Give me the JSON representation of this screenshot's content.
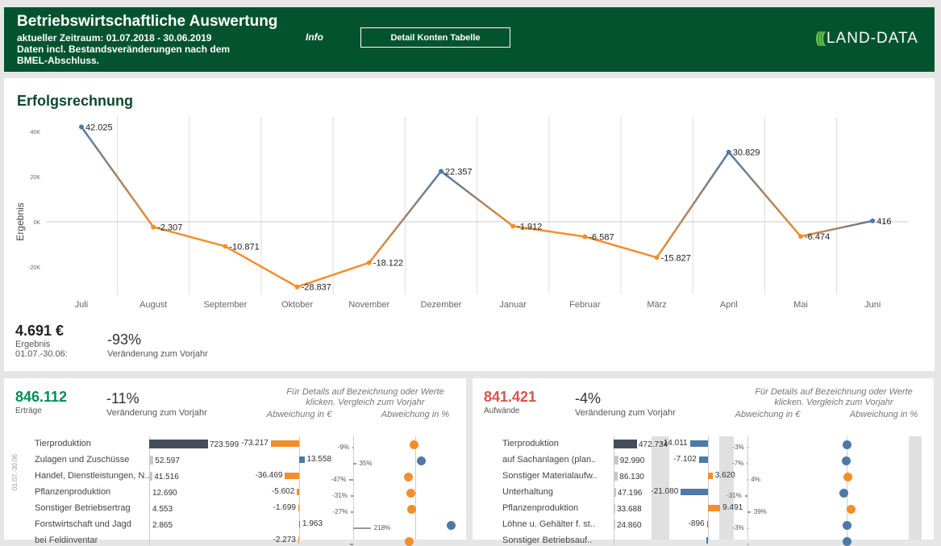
{
  "header": {
    "title": "Betriebswirtschaftliche Auswertung",
    "period": "aktueller Zeitraum:  01.07.2018 - 30.06.2019",
    "note1": "Daten incl. Bestandsveränderungen nach dem",
    "note2": "BMEL-Abschluss.",
    "info": "Info",
    "detail_button": "Detail Konten Tabelle",
    "logo": "LAND-DATA",
    "logo_arc": "(((",
    "color": "#03532f"
  },
  "top": {
    "title": "Erfolgsrechnung",
    "result_value": "4.691 €",
    "result_label": "Ergebnis",
    "result_period": "01.07.-30.06:",
    "change": "-93%",
    "change_label": "Veränderung zum Vorjahr"
  },
  "chart_data": {
    "type": "line",
    "ylabel": "Ergebnis",
    "yticks": [
      "40K",
      "20K",
      "0K",
      "-20K"
    ],
    "ytick_values": [
      40000,
      20000,
      0,
      -20000
    ],
    "ylim": [
      -30000,
      45000
    ],
    "categories": [
      "Juli",
      "August",
      "September",
      "Oktober",
      "November",
      "Dezember",
      "Januar",
      "Februar",
      "März",
      "April",
      "Mai",
      "Juni"
    ],
    "values": [
      42025,
      -2307,
      -10871,
      -28837,
      -18122,
      22357,
      -1912,
      -6587,
      -15827,
      30829,
      -6474,
      416
    ],
    "labels": [
      "42.025",
      "-2.307",
      "-10.871",
      "-28.837",
      "-18.122",
      "22.357",
      "-1.912",
      "-6.587",
      "-15.827",
      "30.829",
      "-6.474",
      "416"
    ],
    "colors": {
      "positive": "#4e79a7",
      "negative": "#f28e2b"
    },
    "grid": true
  },
  "left": {
    "total": "846.112",
    "total_label": "Erträge",
    "total_color": "#0a8a5a",
    "change": "-11%",
    "change_label": "Veränderung zum Vorjahr",
    "hint1": "Für Details auf Bezeichnung oder Werte",
    "hint2": "klicken. Vergleich zum Vorjahr",
    "col_eur": "Abweichung in €",
    "col_pct": "Abweichung in %",
    "axis_label": "01.07.-30.06",
    "rows": [
      {
        "label": "Tierproduktion",
        "value": 723599,
        "value_text": "723.599",
        "diff": -73217,
        "diff_text": "-73.217",
        "pct": -9,
        "pct_text": "-9%"
      },
      {
        "label": "Zulagen und Zuschüsse",
        "value": 52597,
        "value_text": "52.597",
        "diff": 13558,
        "diff_text": "13.558",
        "pct": 35,
        "pct_text": "35%"
      },
      {
        "label": "Handel, Dienstleistungen, N..",
        "value": 41516,
        "value_text": "41.516",
        "diff": -36469,
        "diff_text": "-36.469",
        "pct": -47,
        "pct_text": "-47%"
      },
      {
        "label": "Pflanzenproduktion",
        "value": 12690,
        "value_text": "12.690",
        "diff": -5602,
        "diff_text": "-5.602",
        "pct": -31,
        "pct_text": "-31%"
      },
      {
        "label": "Sonstiger Betriebsertrag",
        "value": 4553,
        "value_text": "4.553",
        "diff": -1699,
        "diff_text": "-1.699",
        "pct": -27,
        "pct_text": "-27%"
      },
      {
        "label": "Forstwirtschaft und Jagd",
        "value": 2865,
        "value_text": "2.865",
        "diff": 1963,
        "diff_text": "1.963",
        "pct": 218,
        "pct_text": "218%"
      },
      {
        "label": "bei Feldinventar",
        "value": 1000,
        "value_text": "",
        "diff": -2273,
        "diff_text": "-2.273",
        "pct": -40,
        "pct_text": ""
      }
    ]
  },
  "right": {
    "total": "841.421",
    "total_label": "Aufwände",
    "total_color": "#d9534f",
    "change": "-4%",
    "change_label": "Veränderung zum Vorjahr",
    "hint1": "Für Details auf Bezeichnung oder Werte",
    "hint2": "klicken. Vergleich zum Vorjahr",
    "col_eur": "Abweichung in €",
    "col_pct": "Abweichung in %",
    "rows": [
      {
        "label": "Tierproduktion",
        "value": 472734,
        "value_text": "472.734",
        "diff": -14011,
        "diff_text": "-14.011",
        "pct": -3,
        "pct_text": "-3%"
      },
      {
        "label": "auf Sachanlagen (plan..",
        "value": 92990,
        "value_text": "92.990",
        "diff": -7102,
        "diff_text": "-7.102",
        "pct": -7,
        "pct_text": "-7%"
      },
      {
        "label": "Sonstiger Materialaufw..",
        "value": 86130,
        "value_text": "86.130",
        "diff": 3620,
        "diff_text": "3.620",
        "pct": 4,
        "pct_text": "4%"
      },
      {
        "label": "Unterhaltung",
        "value": 47196,
        "value_text": "47.196",
        "diff": -21080,
        "diff_text": "-21.080",
        "pct": -31,
        "pct_text": "-31%"
      },
      {
        "label": "Pflanzenproduktion",
        "value": 33688,
        "value_text": "33.688",
        "diff": 9491,
        "diff_text": "9.491",
        "pct": 39,
        "pct_text": "39%"
      },
      {
        "label": "Löhne u. Gehälter f. st..",
        "value": 24860,
        "value_text": "24.860",
        "diff": -896,
        "diff_text": "-896",
        "pct": -3,
        "pct_text": "-3%"
      },
      {
        "label": "Sonstiger Betriebsauf..",
        "value": 20000,
        "value_text": "",
        "diff": -1000,
        "diff_text": "",
        "pct": -3,
        "pct_text": ""
      }
    ]
  }
}
